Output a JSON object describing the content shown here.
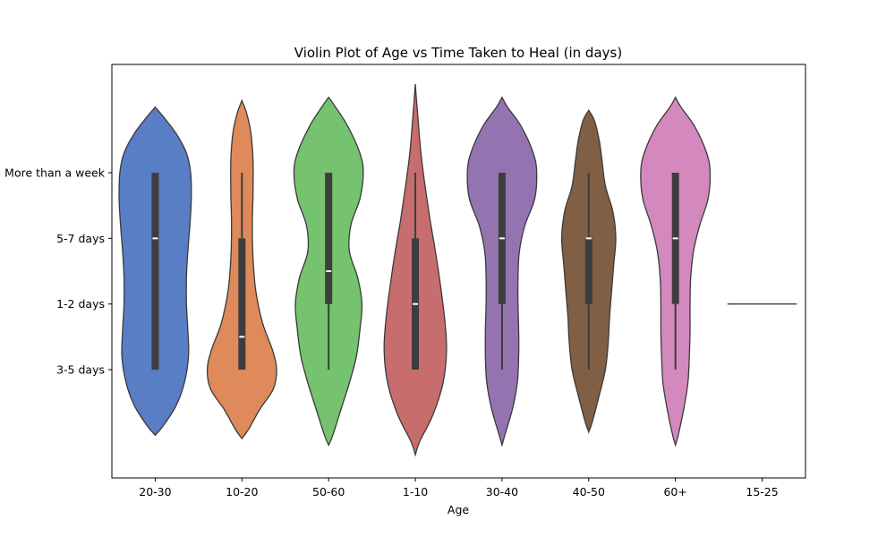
{
  "chart_data": {
    "type": "violin",
    "title": "Violin Plot of Age vs Time Taken to Heal (in days)",
    "xlabel": "Age",
    "ylabel": "",
    "y_levels": [
      "3-5 days",
      "1-2 days",
      "5-7 days",
      "More than a week"
    ],
    "y_level_values": [
      0,
      1,
      2,
      3
    ],
    "ylim": [
      -1.65,
      4.65
    ],
    "grid": false,
    "categories": [
      "20-30",
      "10-20",
      "50-60",
      "1-10",
      "30-40",
      "40-50",
      "60+",
      "15-25"
    ],
    "series": [
      {
        "category": "20-30",
        "color": "#5a7ec5",
        "q1": 0,
        "median": 2,
        "q3": 3,
        "whisker_low": 0,
        "whisker_high": 3,
        "extent": [
          -1.0,
          4.0
        ],
        "profile": [
          [
            -1.0,
            0.0
          ],
          [
            -0.85,
            0.12
          ],
          [
            -0.55,
            0.3
          ],
          [
            -0.2,
            0.42
          ],
          [
            0.2,
            0.48
          ],
          [
            0.6,
            0.47
          ],
          [
            1.0,
            0.45
          ],
          [
            1.4,
            0.45
          ],
          [
            1.8,
            0.47
          ],
          [
            2.2,
            0.5
          ],
          [
            2.6,
            0.52
          ],
          [
            3.0,
            0.51
          ],
          [
            3.3,
            0.45
          ],
          [
            3.6,
            0.3
          ],
          [
            3.85,
            0.12
          ],
          [
            4.0,
            0.0
          ]
        ]
      },
      {
        "category": "10-20",
        "color": "#de8a5a",
        "q1": 0,
        "median": 0.5,
        "q3": 2,
        "whisker_low": 0,
        "whisker_high": 3,
        "extent": [
          -1.05,
          4.1
        ],
        "profile": [
          [
            -1.05,
            0.0
          ],
          [
            -0.9,
            0.1
          ],
          [
            -0.6,
            0.26
          ],
          [
            -0.3,
            0.45
          ],
          [
            0.0,
            0.5
          ],
          [
            0.3,
            0.44
          ],
          [
            0.7,
            0.3
          ],
          [
            1.2,
            0.2
          ],
          [
            1.7,
            0.16
          ],
          [
            2.2,
            0.15
          ],
          [
            2.7,
            0.16
          ],
          [
            3.2,
            0.16
          ],
          [
            3.6,
            0.13
          ],
          [
            3.9,
            0.07
          ],
          [
            4.1,
            0.0
          ]
        ]
      },
      {
        "category": "50-60",
        "color": "#75c26f",
        "q1": 1,
        "median": 1.5,
        "q3": 3,
        "whisker_low": 0,
        "whisker_high": 3,
        "extent": [
          -1.15,
          4.15
        ],
        "profile": [
          [
            -1.15,
            0.0
          ],
          [
            -1.0,
            0.06
          ],
          [
            -0.6,
            0.18
          ],
          [
            -0.2,
            0.3
          ],
          [
            0.2,
            0.4
          ],
          [
            0.6,
            0.45
          ],
          [
            1.0,
            0.48
          ],
          [
            1.4,
            0.42
          ],
          [
            1.8,
            0.3
          ],
          [
            2.2,
            0.32
          ],
          [
            2.6,
            0.45
          ],
          [
            3.0,
            0.5
          ],
          [
            3.3,
            0.45
          ],
          [
            3.7,
            0.28
          ],
          [
            4.0,
            0.1
          ],
          [
            4.15,
            0.0
          ]
        ]
      },
      {
        "category": "1-10",
        "color": "#c86d6d",
        "q1": 0,
        "median": 1,
        "q3": 2,
        "whisker_low": 0,
        "whisker_high": 3,
        "extent": [
          -1.3,
          4.35
        ],
        "profile": [
          [
            -1.3,
            0.0
          ],
          [
            -1.1,
            0.06
          ],
          [
            -0.7,
            0.25
          ],
          [
            -0.2,
            0.4
          ],
          [
            0.3,
            0.45
          ],
          [
            0.8,
            0.42
          ],
          [
            1.3,
            0.36
          ],
          [
            1.8,
            0.29
          ],
          [
            2.3,
            0.21
          ],
          [
            2.8,
            0.14
          ],
          [
            3.3,
            0.08
          ],
          [
            3.8,
            0.04
          ],
          [
            4.2,
            0.01
          ],
          [
            4.35,
            0.0
          ]
        ]
      },
      {
        "category": "30-40",
        "color": "#9474b0",
        "q1": 1,
        "median": 2,
        "q3": 3,
        "whisker_low": 0,
        "whisker_high": 3,
        "extent": [
          -1.15,
          4.15
        ],
        "profile": [
          [
            -1.15,
            0.0
          ],
          [
            -1.0,
            0.04
          ],
          [
            -0.6,
            0.15
          ],
          [
            -0.2,
            0.22
          ],
          [
            0.2,
            0.24
          ],
          [
            0.6,
            0.24
          ],
          [
            1.0,
            0.23
          ],
          [
            1.4,
            0.23
          ],
          [
            1.8,
            0.25
          ],
          [
            2.2,
            0.33
          ],
          [
            2.6,
            0.47
          ],
          [
            3.0,
            0.5
          ],
          [
            3.3,
            0.45
          ],
          [
            3.7,
            0.28
          ],
          [
            4.0,
            0.08
          ],
          [
            4.15,
            0.0
          ]
        ]
      },
      {
        "category": "40-50",
        "color": "#815f44",
        "q1": 1,
        "median": 2,
        "q3": 2,
        "whisker_low": 0,
        "whisker_high": 3,
        "extent": [
          -0.95,
          3.95
        ],
        "profile": [
          [
            -0.95,
            0.0
          ],
          [
            -0.8,
            0.05
          ],
          [
            -0.4,
            0.15
          ],
          [
            0.0,
            0.24
          ],
          [
            0.4,
            0.28
          ],
          [
            0.8,
            0.3
          ],
          [
            1.2,
            0.33
          ],
          [
            1.6,
            0.36
          ],
          [
            2.0,
            0.39
          ],
          [
            2.4,
            0.35
          ],
          [
            2.8,
            0.24
          ],
          [
            3.2,
            0.19
          ],
          [
            3.5,
            0.15
          ],
          [
            3.8,
            0.08
          ],
          [
            3.95,
            0.0
          ]
        ]
      },
      {
        "category": "60+",
        "color": "#d389bd",
        "q1": 1,
        "median": 2,
        "q3": 3,
        "whisker_low": 0,
        "whisker_high": 3,
        "extent": [
          -1.15,
          4.15
        ],
        "profile": [
          [
            -1.15,
            0.0
          ],
          [
            -1.0,
            0.04
          ],
          [
            -0.6,
            0.12
          ],
          [
            -0.2,
            0.18
          ],
          [
            0.2,
            0.2
          ],
          [
            0.6,
            0.21
          ],
          [
            1.0,
            0.21
          ],
          [
            1.4,
            0.22
          ],
          [
            1.8,
            0.26
          ],
          [
            2.2,
            0.35
          ],
          [
            2.6,
            0.47
          ],
          [
            3.0,
            0.5
          ],
          [
            3.3,
            0.45
          ],
          [
            3.7,
            0.28
          ],
          [
            4.0,
            0.08
          ],
          [
            4.15,
            0.0
          ]
        ]
      },
      {
        "category": "15-25",
        "color": "#444444",
        "single_value": 1,
        "width": 0.8
      }
    ]
  }
}
